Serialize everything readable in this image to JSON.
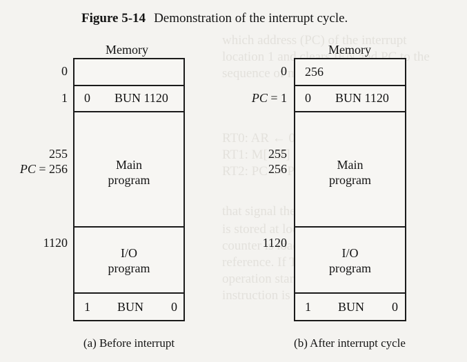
{
  "figure": {
    "number": "Figure 5-14",
    "title": "Demonstration of the interrupt cycle."
  },
  "panels": [
    {
      "memory_label": "Memory",
      "addresses": {
        "a0": "0",
        "a1": "1",
        "a255": "255",
        "a256": "",
        "pc_name": "PC",
        "pc_eq": "= 256",
        "pc1_name": "",
        "pc1_eq": "",
        "a1120": "1120"
      },
      "cells": {
        "word0": "",
        "word1_left": "0",
        "word1_right": "BUN  1120",
        "main_line1": "Main",
        "main_line2": "program",
        "io_line1": "I/O",
        "io_line2": "program",
        "last_left": "1",
        "last_mid": "BUN",
        "last_right": "0"
      },
      "caption": "(a) Before interrupt"
    },
    {
      "memory_label": "Memory",
      "addresses": {
        "a0": "0",
        "a1": "1",
        "a255": "255",
        "a256": "256",
        "pc_name": "",
        "pc_eq": "",
        "pc1_name": "PC",
        "pc1_eq": " = 1",
        "a1120": "1120"
      },
      "cells": {
        "word0": "256",
        "word1_left": "0",
        "word1_right": "BUN  1120",
        "main_line1": "Main",
        "main_line2": "program",
        "io_line1": "I/O",
        "io_line2": "program",
        "last_left": "1",
        "last_mid": "BUN",
        "last_right": "0"
      },
      "caption": "(b) After interrupt cycle"
    }
  ]
}
